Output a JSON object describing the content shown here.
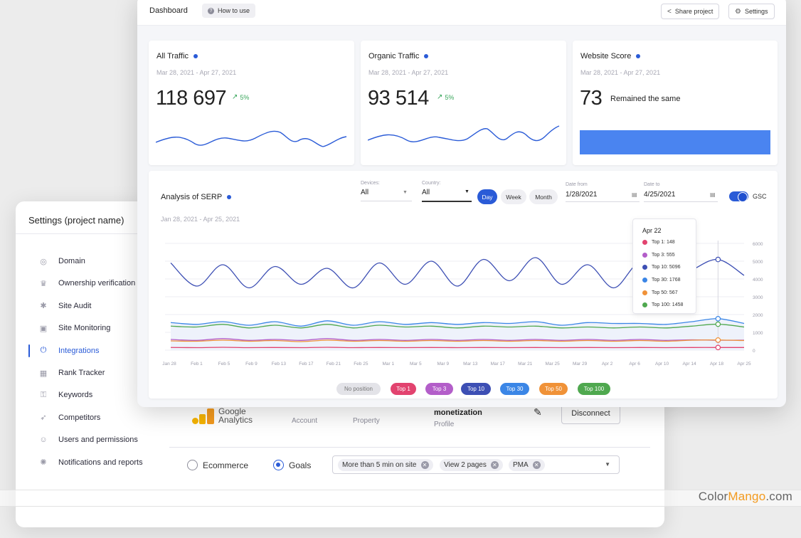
{
  "settings": {
    "title": "Settings (project name)",
    "nav": [
      {
        "label": "Domain",
        "icon": "globe-icon"
      },
      {
        "label": "Ownership verification",
        "icon": "crown-icon"
      },
      {
        "label": "Site Audit",
        "icon": "bug-icon"
      },
      {
        "label": "Site Monitoring",
        "icon": "monitor-icon"
      },
      {
        "label": "Integrations",
        "icon": "plug-icon",
        "active": true
      },
      {
        "label": "Rank Tracker",
        "icon": "rank-icon"
      },
      {
        "label": "Keywords",
        "icon": "key-icon"
      },
      {
        "label": "Competitors",
        "icon": "competitors-icon"
      },
      {
        "label": "Users and permissions",
        "icon": "user-icon"
      },
      {
        "label": "Notifications and reports",
        "icon": "bell-icon"
      }
    ],
    "integration": {
      "service_line1": "Google",
      "service_line2": "Analytics",
      "account_label": "Account",
      "property_label": "Property",
      "profile_value": "monetization",
      "profile_label": "Profile",
      "disconnect_label": "Disconnect",
      "radio_ecommerce": "Ecommerce",
      "radio_goals": "Goals",
      "goal_chips": [
        "More than 5 min on site",
        "View 2 pages",
        "PMA"
      ]
    }
  },
  "dashboard": {
    "title": "Dashboard",
    "how_to_use": "How to use",
    "share_label": "Share project",
    "settings_label": "Settings",
    "cards": [
      {
        "title": "All Traffic",
        "date": "Mar 28, 2021 - Apr 27, 2021",
        "value": "118 697",
        "trend": "5%"
      },
      {
        "title": "Organic Traffic",
        "date": "Mar 28, 2021 - Apr 27, 2021",
        "value": "93 514",
        "trend": "5%"
      },
      {
        "title": "Website Score",
        "date": "Mar 28, 2021 - Apr 27, 2021",
        "value": "73",
        "note": "Remained the same"
      }
    ],
    "serp": {
      "title": "Analysis of SERP",
      "date": "Jan 28, 2021 - Apr 25, 2021",
      "devices_label": "Devices:",
      "devices_value": "All",
      "country_label": "Country:",
      "country_value": "All",
      "period_day": "Day",
      "period_week": "Week",
      "period_month": "Month",
      "date_from_label": "Date from",
      "date_from_value": "1/28/2021",
      "date_to_label": "Date to",
      "date_to_value": "4/25/2021",
      "gsc_label": "GSC"
    },
    "tooltip": {
      "title": "Apr 22",
      "rows": [
        "Top 1: 148",
        "Top 3: 555",
        "Top 10: 5096",
        "Top 30: 1768",
        "Top 50: 567",
        "Top 100: 1458"
      ]
    },
    "legend": [
      "No position",
      "Top 1",
      "Top 3",
      "Top 10",
      "Top 30",
      "Top 50",
      "Top 100"
    ]
  },
  "colors": {
    "accent": "#2a5bd7",
    "top1": "#e2436f",
    "top3": "#b35ec9",
    "top10": "#3d4fb4",
    "top30": "#3b86e6",
    "top50": "#f09238",
    "top100": "#4fa84f",
    "no_position": "#e3e3e8"
  },
  "chart_data": {
    "type": "line",
    "title": "Analysis of SERP",
    "x_ticks": [
      "Jan 28",
      "Feb 1",
      "Feb 5",
      "Feb 9",
      "Feb 13",
      "Feb 17",
      "Feb 21",
      "Feb 25",
      "Mar 1",
      "Mar 5",
      "Mar 9",
      "Mar 13",
      "Mar 17",
      "Mar 21",
      "Mar 25",
      "Mar 29",
      "Apr 2",
      "Apr 6",
      "Apr 10",
      "Apr 14",
      "Apr 18",
      "Apr 25"
    ],
    "y_ticks": [
      "0",
      "1000",
      "2000",
      "3000",
      "4000",
      "5000",
      "6000"
    ],
    "ylim": [
      0,
      6000
    ],
    "x": [
      "Jan 28",
      "Feb 1",
      "Feb 5",
      "Feb 9",
      "Feb 13",
      "Feb 17",
      "Feb 21",
      "Feb 25",
      "Mar 1",
      "Mar 5",
      "Mar 9",
      "Mar 13",
      "Mar 17",
      "Mar 21",
      "Mar 25",
      "Mar 29",
      "Apr 2",
      "Apr 6",
      "Apr 10",
      "Apr 14",
      "Apr 18",
      "Apr 22",
      "Apr 25"
    ],
    "series": [
      {
        "name": "Top 10",
        "values": [
          4900,
          3600,
          4800,
          3500,
          4700,
          3700,
          4600,
          3500,
          4900,
          3700,
          5000,
          3600,
          5100,
          3900,
          5200,
          3700,
          4800,
          3500,
          4900,
          3700,
          4500,
          5096,
          4200
        ]
      },
      {
        "name": "Top 30",
        "values": [
          1550,
          1450,
          1600,
          1400,
          1600,
          1350,
          1650,
          1400,
          1600,
          1450,
          1550,
          1450,
          1550,
          1500,
          1600,
          1400,
          1550,
          1500,
          1500,
          1450,
          1600,
          1768,
          1500
        ]
      },
      {
        "name": "Top 100",
        "values": [
          1350,
          1300,
          1450,
          1250,
          1400,
          1250,
          1450,
          1250,
          1400,
          1300,
          1350,
          1250,
          1350,
          1300,
          1350,
          1250,
          1300,
          1250,
          1300,
          1250,
          1350,
          1458,
          1300
        ]
      },
      {
        "name": "Top 3",
        "values": [
          600,
          550,
          650,
          550,
          600,
          550,
          650,
          550,
          600,
          550,
          600,
          550,
          600,
          550,
          600,
          550,
          600,
          550,
          600,
          550,
          580,
          555,
          560
        ]
      },
      {
        "name": "Top 50",
        "values": [
          520,
          500,
          560,
          500,
          540,
          480,
          560,
          500,
          540,
          500,
          540,
          500,
          540,
          500,
          540,
          500,
          540,
          500,
          540,
          500,
          560,
          567,
          540
        ]
      },
      {
        "name": "Top 1",
        "values": [
          150,
          140,
          160,
          140,
          150,
          140,
          160,
          140,
          150,
          140,
          150,
          140,
          150,
          140,
          150,
          140,
          150,
          140,
          150,
          140,
          150,
          148,
          150
        ]
      }
    ]
  },
  "watermark": {
    "pre": "Color",
    "mid": "Mango",
    "post": ".com"
  }
}
